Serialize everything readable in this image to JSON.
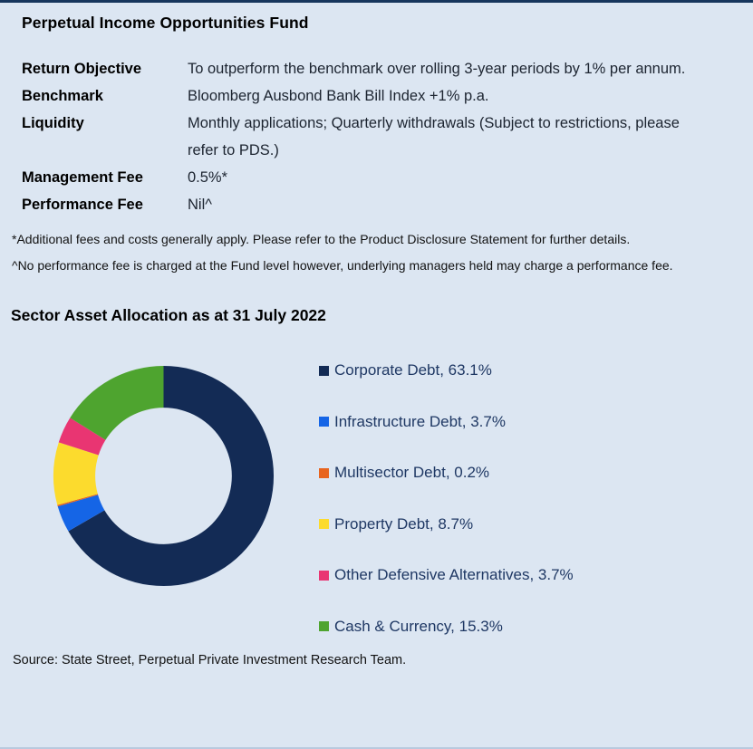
{
  "page": {
    "background_color": "#dce6f2",
    "top_border_color": "#17365d"
  },
  "fund_header": {
    "title": "Perpetual Income Opportunities Fund"
  },
  "fund_details": {
    "rows": [
      {
        "label": "Return Objective",
        "value": "To outperform the benchmark over rolling 3-year periods by 1% per annum."
      },
      {
        "label": "Benchmark",
        "value": "Bloomberg Ausbond Bank Bill Index +1% p.a."
      },
      {
        "label": "Liquidity",
        "value": "Monthly applications; Quarterly withdrawals (Subject to restrictions, please refer to PDS.)"
      },
      {
        "label": "Management Fee",
        "value": "0.5%*"
      },
      {
        "label": "Performance Fee",
        "value": "Nil^"
      }
    ]
  },
  "footnotes": {
    "note1": "*Additional fees and costs generally apply. Please refer to the Product Disclosure Statement for further details.",
    "note2": "^No performance fee is charged at the Fund level however, underlying managers held may charge a performance fee."
  },
  "allocation_section": {
    "title": "Sector Asset Allocation as at 31 July 2022"
  },
  "chart_data": {
    "type": "pie",
    "subtype": "donut",
    "title": "Sector Asset Allocation as at 31 July 2022",
    "categories": [
      "Corporate Debt",
      "Infrastructure Debt",
      "Multisector Debt",
      "Property Debt",
      "Other Defensive Alternatives",
      "Cash & Currency"
    ],
    "values": [
      63.1,
      3.7,
      0.2,
      8.7,
      3.7,
      15.3
    ],
    "unit": "%",
    "colors": [
      "#132b55",
      "#1565e6",
      "#e8641e",
      "#fcdb2d",
      "#e93572",
      "#4ea42f"
    ],
    "start_angle": "top",
    "direction": "clockwise",
    "donut_hole_ratio": 0.62,
    "legend_position": "right"
  },
  "legend": {
    "text_color": "#1f3864",
    "items": [
      {
        "label": "Corporate Debt",
        "pct": "63.1%",
        "display": "Corporate Debt, 63.1%",
        "color": "#132b55"
      },
      {
        "label": "Infrastructure Debt",
        "pct": "3.7%",
        "display": "Infrastructure Debt, 3.7%",
        "color": "#1565e6"
      },
      {
        "label": "Multisector Debt",
        "pct": "0.2%",
        "display": "Multisector Debt, 0.2%",
        "color": "#e8641e"
      },
      {
        "label": "Property Debt",
        "pct": "8.7%",
        "display": "Property Debt, 8.7%",
        "color": "#fcdb2d"
      },
      {
        "label": "Other Defensive Alternatives",
        "pct": "3.7%",
        "display": "Other Defensive Alternatives, 3.7%",
        "color": "#e93572"
      },
      {
        "label": "Cash & Currency",
        "pct": "15.3%",
        "display": "Cash & Currency, 15.3%",
        "color": "#4ea42f"
      }
    ]
  },
  "source_line": "Source: State Street, Perpetual Private Investment Research Team."
}
